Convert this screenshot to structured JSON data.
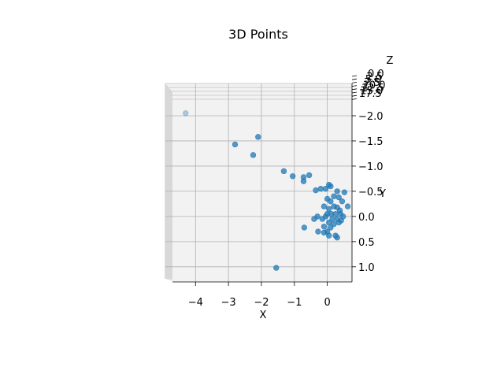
{
  "chart_data": {
    "type": "scatter",
    "projection": "3d",
    "title": "3D Points",
    "xlabel": "X",
    "ylabel": "Y",
    "zlabel": "Z",
    "xlim": [
      -4.7,
      0.75
    ],
    "ylim": [
      -2.25,
      1.3
    ],
    "x_ticks": [
      -4,
      -3,
      -2,
      -1,
      0
    ],
    "y_ticks": [
      -2.0,
      -1.5,
      -1.0,
      -0.5,
      0.0,
      0.5,
      1.0
    ],
    "y_tick_labels": [
      "−2.0",
      "−1.5",
      "−1.0",
      "−0.5",
      "0.0",
      "0.5",
      "1.0"
    ],
    "x_tick_labels": [
      "−4",
      "−3",
      "−2",
      "−1",
      "0"
    ],
    "z_tick_labels": [
      "0.0",
      "2.5",
      "5.0",
      "7.5",
      "10.0",
      "12.5",
      "15.0",
      "17.5"
    ],
    "grid": true,
    "point_color": "#1f77b4",
    "points": [
      {
        "x": -4.3,
        "y": -2.05
      },
      {
        "x": -2.8,
        "y": -1.43
      },
      {
        "x": -2.1,
        "y": -1.58
      },
      {
        "x": -2.25,
        "y": -1.22
      },
      {
        "x": -1.32,
        "y": -0.9
      },
      {
        "x": -1.05,
        "y": -0.8
      },
      {
        "x": -0.55,
        "y": -0.82
      },
      {
        "x": -0.72,
        "y": -0.78
      },
      {
        "x": -0.72,
        "y": -0.7
      },
      {
        "x": -0.35,
        "y": -0.52
      },
      {
        "x": -0.2,
        "y": -0.55
      },
      {
        "x": -0.05,
        "y": -0.55
      },
      {
        "x": 0.05,
        "y": -0.63
      },
      {
        "x": 0.1,
        "y": -0.6
      },
      {
        "x": 0.3,
        "y": -0.5
      },
      {
        "x": 0.52,
        "y": -0.48
      },
      {
        "x": 0.0,
        "y": -0.35
      },
      {
        "x": 0.1,
        "y": -0.3
      },
      {
        "x": 0.2,
        "y": -0.4
      },
      {
        "x": 0.35,
        "y": -0.38
      },
      {
        "x": 0.45,
        "y": -0.3
      },
      {
        "x": -0.1,
        "y": -0.2
      },
      {
        "x": 0.05,
        "y": -0.15
      },
      {
        "x": 0.2,
        "y": -0.2
      },
      {
        "x": 0.3,
        "y": -0.18
      },
      {
        "x": 0.38,
        "y": -0.12
      },
      {
        "x": 0.62,
        "y": -0.2
      },
      {
        "x": 0.0,
        "y": -0.05
      },
      {
        "x": 0.12,
        "y": -0.05
      },
      {
        "x": 0.25,
        "y": -0.05
      },
      {
        "x": 0.4,
        "y": -0.05
      },
      {
        "x": 0.48,
        "y": 0.0
      },
      {
        "x": -0.15,
        "y": 0.05
      },
      {
        "x": -0.05,
        "y": 0.0
      },
      {
        "x": 0.15,
        "y": 0.05
      },
      {
        "x": 0.3,
        "y": 0.05
      },
      {
        "x": 0.42,
        "y": 0.08
      },
      {
        "x": -0.3,
        "y": 0.0
      },
      {
        "x": -0.4,
        "y": 0.05
      },
      {
        "x": 0.05,
        "y": 0.12
      },
      {
        "x": 0.2,
        "y": 0.15
      },
      {
        "x": 0.35,
        "y": 0.12
      },
      {
        "x": -0.1,
        "y": 0.2
      },
      {
        "x": 0.1,
        "y": 0.22
      },
      {
        "x": 0.0,
        "y": 0.3
      },
      {
        "x": -0.1,
        "y": 0.32
      },
      {
        "x": -0.28,
        "y": 0.3
      },
      {
        "x": 0.05,
        "y": 0.38
      },
      {
        "x": -0.7,
        "y": 0.22
      },
      {
        "x": 0.25,
        "y": 0.38
      },
      {
        "x": 0.3,
        "y": 0.42
      },
      {
        "x": -1.55,
        "y": 1.02
      }
    ]
  }
}
